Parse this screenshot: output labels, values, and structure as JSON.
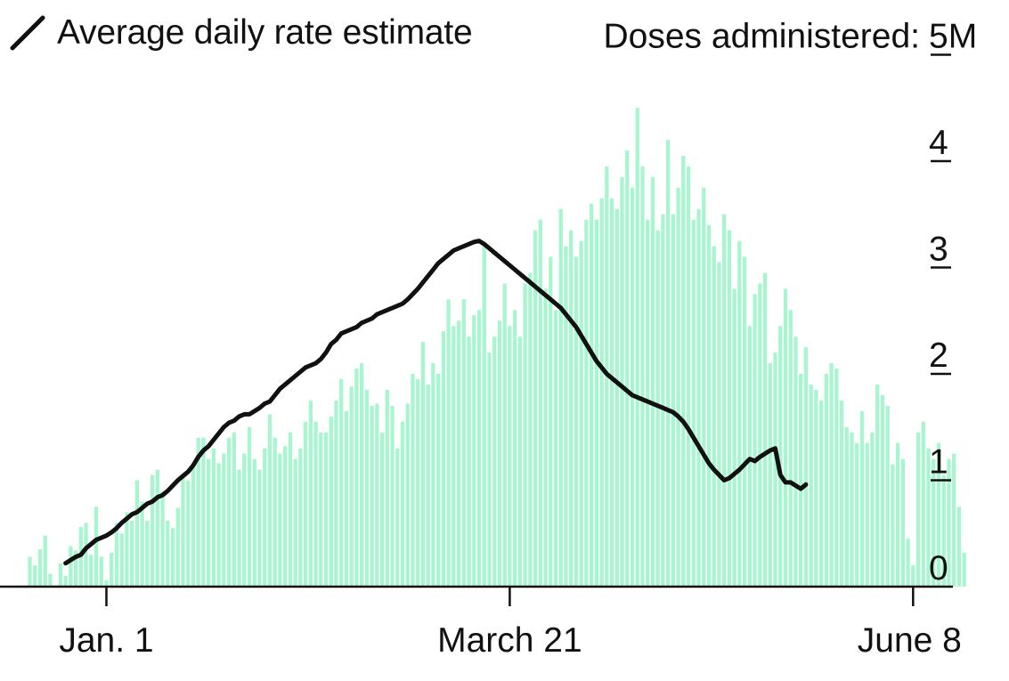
{
  "legend": {
    "line_label": "Average daily rate estimate",
    "line_icon": "line-segment-icon"
  },
  "chart_data": {
    "type": "bar",
    "y_title": "Doses administered:",
    "yticks": [
      {
        "value": 0,
        "label": "0"
      },
      {
        "value": 1,
        "label": "1"
      },
      {
        "value": 2,
        "label": "2"
      },
      {
        "value": 3,
        "label": "3"
      },
      {
        "value": 4,
        "label": "4"
      },
      {
        "value": 5,
        "label": "5M"
      }
    ],
    "ylim": [
      0,
      5
    ],
    "xticks": [
      {
        "day": 15,
        "label": "Jan. 1"
      },
      {
        "day": 94,
        "label": "March 21"
      },
      {
        "day": 173,
        "label": "June 8"
      }
    ],
    "xlim": [
      0,
      174
    ],
    "grid": false,
    "legend_position": "top-left",
    "colors": {
      "bars": "#a8f5d0",
      "line": "#111111",
      "axis": "#111111"
    },
    "series": [
      {
        "type": "bar",
        "values": [
          0.28,
          0.2,
          0.35,
          0.48,
          0.12,
          0.0,
          0.22,
          0.1,
          0.38,
          0.34,
          0.56,
          0.6,
          0.3,
          0.75,
          0.28,
          0.06,
          0.32,
          0.6,
          0.5,
          0.7,
          0.62,
          1.0,
          0.8,
          0.62,
          1.05,
          1.1,
          0.9,
          0.62,
          0.55,
          0.74,
          1.05,
          1.0,
          1.15,
          1.4,
          1.4,
          1.2,
          1.3,
          1.16,
          1.25,
          1.4,
          1.45,
          1.1,
          1.25,
          1.5,
          1.2,
          1.1,
          1.3,
          1.62,
          1.4,
          1.25,
          1.32,
          1.45,
          1.2,
          1.3,
          1.55,
          1.75,
          1.55,
          1.45,
          1.45,
          1.6,
          1.75,
          1.95,
          1.65,
          1.88,
          2.05,
          2.1,
          1.85,
          1.7,
          1.72,
          1.45,
          1.85,
          1.7,
          1.3,
          1.55,
          1.72,
          2.0,
          1.95,
          2.3,
          1.9,
          2.1,
          2.0,
          2.4,
          2.7,
          2.45,
          2.5,
          2.7,
          2.35,
          2.55,
          2.6,
          3.2,
          2.2,
          2.35,
          2.5,
          2.85,
          2.45,
          2.6,
          2.35,
          2.85,
          2.95,
          3.35,
          3.45,
          2.8,
          3.1,
          2.6,
          3.55,
          3.2,
          3.35,
          3.1,
          3.25,
          3.45,
          3.6,
          3.45,
          3.65,
          3.95,
          3.65,
          3.55,
          3.85,
          4.1,
          3.75,
          4.5,
          3.95,
          3.45,
          3.85,
          3.35,
          3.5,
          4.2,
          3.5,
          3.75,
          4.05,
          3.95,
          3.45,
          3.55,
          3.75,
          3.4,
          3.2,
          3.05,
          3.5,
          3.35,
          2.8,
          3.25,
          3.1,
          2.45,
          2.75,
          2.85,
          2.95,
          2.1,
          2.2,
          2.45,
          2.8,
          2.6,
          2.35,
          2.0,
          2.25,
          1.9,
          1.85,
          1.75,
          2.0,
          2.1,
          2.05,
          1.75,
          1.5,
          1.45,
          1.35,
          1.65,
          1.35,
          1.45,
          1.9,
          1.8,
          1.7,
          1.15,
          1.35,
          1.2,
          0.45,
          0.2,
          1.45,
          1.55,
          1.3,
          1.2,
          1.35,
          1.05,
          1.2,
          1.25,
          0.75,
          0.32
        ]
      },
      {
        "type": "line",
        "name": "Average daily rate estimate",
        "x_start_day": 7,
        "values": [
          0.22,
          0.25,
          0.28,
          0.3,
          0.36,
          0.4,
          0.44,
          0.46,
          0.48,
          0.51,
          0.55,
          0.6,
          0.64,
          0.68,
          0.7,
          0.74,
          0.78,
          0.8,
          0.84,
          0.86,
          0.9,
          0.95,
          1.0,
          1.04,
          1.08,
          1.14,
          1.22,
          1.28,
          1.32,
          1.38,
          1.44,
          1.5,
          1.54,
          1.56,
          1.6,
          1.62,
          1.62,
          1.65,
          1.68,
          1.72,
          1.74,
          1.8,
          1.86,
          1.9,
          1.94,
          1.98,
          2.02,
          2.06,
          2.08,
          2.1,
          2.14,
          2.2,
          2.28,
          2.32,
          2.38,
          2.4,
          2.42,
          2.44,
          2.48,
          2.5,
          2.52,
          2.56,
          2.58,
          2.6,
          2.62,
          2.64,
          2.66,
          2.7,
          2.75,
          2.8,
          2.86,
          2.92,
          2.98,
          3.04,
          3.08,
          3.12,
          3.16,
          3.18,
          3.2,
          3.22,
          3.24,
          3.25,
          3.22,
          3.18,
          3.14,
          3.1,
          3.06,
          3.02,
          2.98,
          2.94,
          2.9,
          2.86,
          2.82,
          2.78,
          2.74,
          2.7,
          2.66,
          2.62,
          2.56,
          2.5,
          2.44,
          2.36,
          2.28,
          2.2,
          2.12,
          2.06,
          2.0,
          1.96,
          1.92,
          1.88,
          1.84,
          1.8,
          1.78,
          1.76,
          1.74,
          1.72,
          1.7,
          1.68,
          1.66,
          1.64,
          1.6,
          1.55,
          1.48,
          1.4,
          1.32,
          1.24,
          1.16,
          1.1,
          1.05,
          1.0,
          1.02,
          1.06,
          1.1,
          1.15,
          1.2,
          1.18,
          1.22,
          1.25,
          1.28,
          1.3,
          1.05,
          0.98,
          0.98,
          0.95,
          0.92,
          0.96
        ]
      }
    ]
  }
}
